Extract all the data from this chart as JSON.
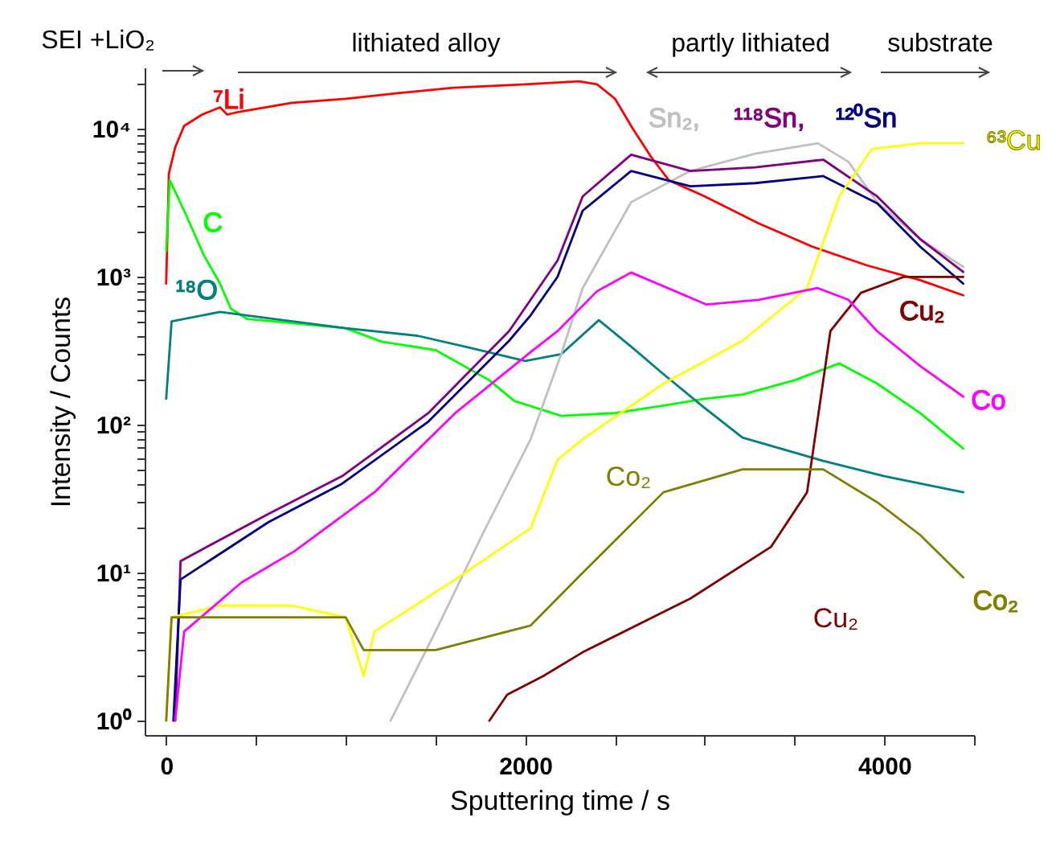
{
  "chart_data": {
    "type": "line",
    "xlabel": "Sputtering time / s",
    "ylabel": "Intensity / Counts",
    "log": "y",
    "grid": false,
    "legend": false,
    "xlim": [
      -120,
      4500
    ],
    "xticks": [
      0,
      {
        "value": 500,
        "label": null
      },
      {
        "value": 1000,
        "label": null
      },
      {
        "value": 1500,
        "label": null
      },
      2000,
      {
        "value": 2500,
        "label": null
      },
      {
        "value": 3000,
        "label": null
      },
      {
        "value": 3500,
        "label": null
      },
      4000,
      {
        "value": 4500,
        "label": null
      }
    ],
    "ylim": [
      0.8,
      26000
    ],
    "yticks": [
      {
        "value": 1,
        "label": "10⁰"
      },
      {
        "value": 2,
        "label": null
      },
      {
        "value": 3,
        "label": null
      },
      {
        "value": 4,
        "label": null
      },
      {
        "value": 5,
        "label": null
      },
      {
        "value": 6,
        "label": null
      },
      {
        "value": 7,
        "label": null
      },
      {
        "value": 8,
        "label": null
      },
      {
        "value": 9,
        "label": null
      },
      {
        "value": 10,
        "label": "10¹"
      },
      {
        "value": 20,
        "label": null
      },
      {
        "value": 30,
        "label": null
      },
      {
        "value": 40,
        "label": null
      },
      {
        "value": 50,
        "label": null
      },
      {
        "value": 60,
        "label": null
      },
      {
        "value": 70,
        "label": null
      },
      {
        "value": 80,
        "label": null
      },
      {
        "value": 90,
        "label": null
      },
      {
        "value": 100,
        "label": "10²"
      },
      {
        "value": 200,
        "label": null
      },
      {
        "value": 300,
        "label": null
      },
      {
        "value": 400,
        "label": null
      },
      {
        "value": 500,
        "label": null
      },
      {
        "value": 600,
        "label": null
      },
      {
        "value": 700,
        "label": null
      },
      {
        "value": 800,
        "label": null
      },
      {
        "value": 900,
        "label": null
      },
      {
        "value": 1000,
        "label": "10³"
      },
      {
        "value": 2000,
        "label": null
      },
      {
        "value": 3000,
        "label": null
      },
      {
        "value": 4000,
        "label": null
      },
      {
        "value": 5000,
        "label": null
      },
      {
        "value": 6000,
        "label": null
      },
      {
        "value": 7000,
        "label": null
      },
      {
        "value": 8000,
        "label": null
      },
      {
        "value": 9000,
        "label": null
      },
      {
        "value": 10000,
        "label": "10⁴"
      },
      {
        "value": 20000,
        "label": null
      }
    ],
    "annotations": [
      "SEI +LiO₂",
      "lithiated alloy",
      "partly lithiated",
      "substrate",
      "Cu₂",
      "Co₂"
    ],
    "series": [
      {
        "name": "⁷Li",
        "color": "#ff0000",
        "x": [
          0,
          15,
          50,
          100,
          200,
          300,
          340,
          400,
          700,
          1000,
          1300,
          1600,
          2000,
          2300,
          2400,
          2500,
          2600,
          2700,
          2800,
          3000,
          3300,
          3600,
          3900,
          4200,
          4440
        ],
        "values": [
          900,
          5000,
          7500,
          10500,
          12500,
          14000,
          12500,
          13000,
          15000,
          16000,
          17500,
          19000,
          20000,
          21000,
          20000,
          16000,
          10000,
          6500,
          4500,
          3500,
          2300,
          1600,
          1200,
          950,
          750
        ]
      },
      {
        "name": "C",
        "color": "#00ff00",
        "x": [
          0,
          20,
          100,
          210,
          300,
          360,
          450,
          600,
          1000,
          1200,
          1500,
          1800,
          1940,
          2200,
          2500,
          2770,
          3000,
          3210,
          3500,
          3750,
          3960,
          4200,
          4440
        ],
        "values": [
          1500,
          4500,
          2800,
          1400,
          900,
          610,
          520,
          500,
          450,
          365,
          320,
          200,
          145,
          115,
          120,
          135,
          150,
          160,
          200,
          260,
          190,
          120,
          69
        ]
      },
      {
        "name": "¹⁸O",
        "color": "#008080",
        "x": [
          0,
          30,
          300,
          600,
          1000,
          1400,
          1700,
          2000,
          2200,
          2410,
          2600,
          2770,
          3000,
          3210,
          3660,
          4000,
          4440
        ],
        "values": [
          150,
          500,
          580,
          520,
          450,
          400,
          330,
          270,
          300,
          510,
          330,
          220,
          130,
          82,
          57,
          45,
          35
        ]
      },
      {
        "name": "Sn₂,",
        "color": "#c0c0c0",
        "x": [
          1250,
          1500,
          1760,
          2030,
          2200,
          2320,
          2590,
          2920,
          3280,
          3630,
          3800,
          3960,
          4200,
          4440
        ],
        "values": [
          1,
          4,
          18,
          80,
          300,
          840,
          3200,
          5200,
          6800,
          8000,
          6000,
          3200,
          1800,
          1170
        ]
      },
      {
        "name": "¹¹⁸Sn,",
        "color": "#800080",
        "x": [
          50,
          80,
          570,
          980,
          1460,
          1910,
          2030,
          2180,
          2320,
          2590,
          2920,
          3280,
          3660,
          3960,
          4200,
          4440
        ],
        "values": [
          1,
          12,
          25,
          45,
          120,
          430,
          700,
          1290,
          3500,
          6700,
          5200,
          5500,
          6200,
          3500,
          1800,
          1080
        ]
      },
      {
        "name": "¹²⁰Sn",
        "color": "#000080",
        "x": [
          40,
          80,
          570,
          980,
          1460,
          1910,
          2030,
          2180,
          2320,
          2590,
          2920,
          3280,
          3660,
          3960,
          4200,
          4440
        ],
        "values": [
          1,
          9,
          22,
          40,
          105,
          370,
          550,
          1000,
          2800,
          5200,
          4100,
          4300,
          4800,
          3150,
          1600,
          900
        ]
      },
      {
        "name": "⁶³Cu",
        "color": "#ffff00",
        "x": [
          0,
          30,
          300,
          700,
          1000,
          1100,
          1160,
          1610,
          2030,
          2180,
          2320,
          2770,
          3210,
          3570,
          3750,
          3930,
          4200,
          4440
        ],
        "values": [
          1,
          5,
          6,
          6,
          5,
          2,
          4,
          9,
          20,
          58,
          80,
          190,
          370,
          840,
          3500,
          7300,
          8000,
          8000
        ]
      },
      {
        "name": "Cu₂",
        "color": "#800000",
        "x": [
          1800,
          1900,
          2100,
          2320,
          2920,
          3370,
          3570,
          3700,
          3870,
          4110,
          4440
        ],
        "values": [
          1,
          1.5,
          2,
          2.9,
          6.7,
          15,
          35,
          430,
          780,
          1000,
          1000
        ]
      },
      {
        "name": "Co",
        "color": "#ff00ff",
        "x": [
          50,
          100,
          420,
          715,
          1160,
          1610,
          2030,
          2180,
          2400,
          2590,
          3010,
          3300,
          3630,
          3800,
          3960,
          4200,
          4440
        ],
        "values": [
          1,
          4,
          8.6,
          14,
          35,
          120,
          310,
          430,
          800,
          1070,
          650,
          700,
          840,
          700,
          430,
          250,
          155
        ]
      },
      {
        "name": "Co₂",
        "color": "#808000",
        "x": [
          0,
          30,
          500,
          1000,
          1100,
          1500,
          2030,
          2320,
          2770,
          3210,
          3660,
          3960,
          4200,
          4440
        ],
        "values": [
          1,
          5,
          5,
          5,
          3,
          3,
          4.4,
          10,
          35,
          50,
          50,
          30,
          18,
          9.3
        ]
      }
    ]
  }
}
